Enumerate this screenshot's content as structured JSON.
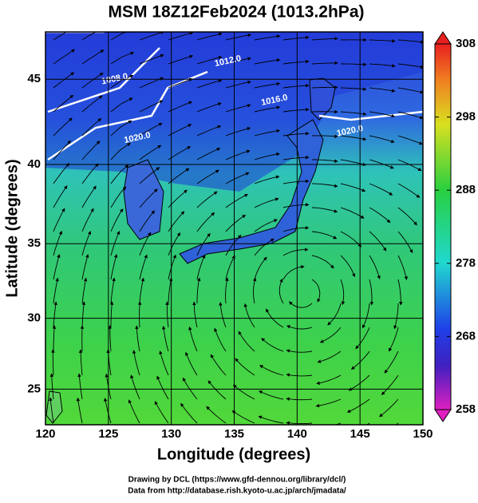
{
  "title": "MSM 18Z12Feb2024 (1013.2hPa)",
  "x_axis": {
    "label": "Longitude (degrees)",
    "lim": [
      120,
      150
    ],
    "ticks": [
      120,
      125,
      130,
      135,
      140,
      145,
      150
    ]
  },
  "y_axis": {
    "label": "Latitude  (degrees)",
    "lim": [
      22.4,
      47.6
    ],
    "ticks": [
      25,
      30,
      35,
      40,
      45
    ]
  },
  "colorbar": {
    "lim": [
      258,
      308
    ],
    "ticks": [
      258,
      268,
      278,
      288,
      298,
      308
    ]
  },
  "contour_labels": [
    {
      "text": "1008.0",
      "lon": 125.5,
      "lat": 45.0
    },
    {
      "text": "1012.0",
      "lon": 134.5,
      "lat": 46.0
    },
    {
      "text": "1016.0",
      "lon": 138.2,
      "lat": 43.8
    },
    {
      "text": "1020.0",
      "lon": 127.3,
      "lat": 41.6
    },
    {
      "text": "1020.0",
      "lon": 144.2,
      "lat": 42.0
    }
  ],
  "credits": [
    "Drawing by DCL (https://www.gfd-dennou.org/library/dcl/)",
    "Data from http://database.rish.kyoto-u.ac.jp/arch/jmadata/"
  ]
}
